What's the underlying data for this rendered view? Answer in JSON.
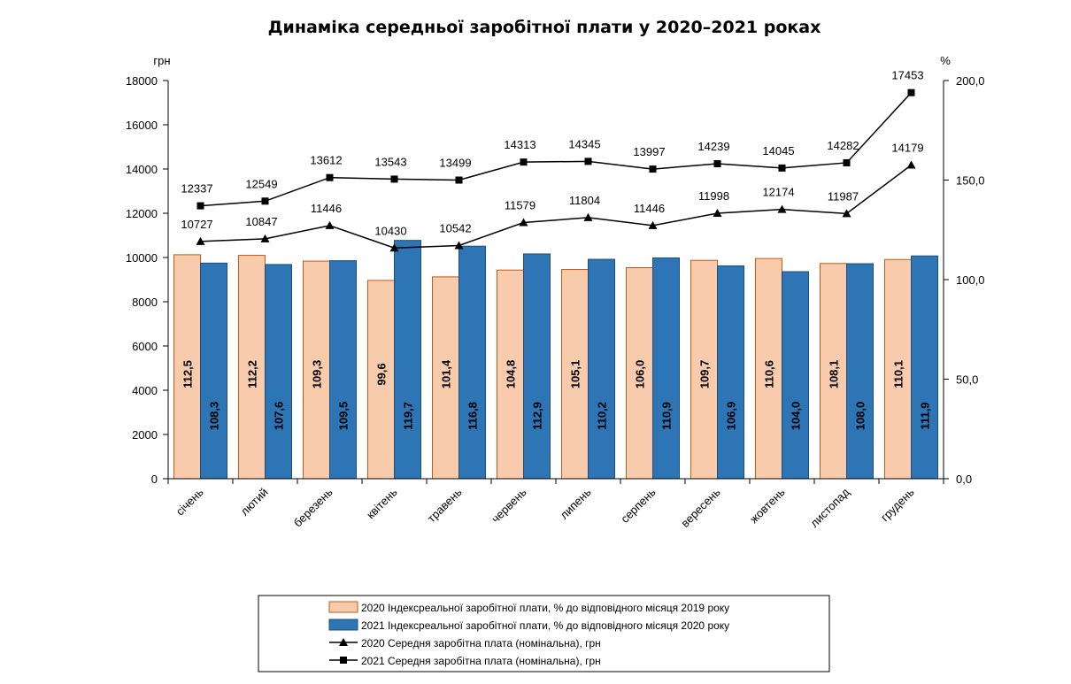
{
  "chart_data": {
    "type": "bar",
    "title": "Динаміка середньої заробітної плати у 2020–2021 роках",
    "left_unit": "грн",
    "right_unit": "%",
    "categories": [
      "січень",
      "лютий",
      "березень",
      "квітень",
      "травень",
      "червень",
      "липень",
      "серпень",
      "вересень",
      "жовтень",
      "листопад",
      "грудень"
    ],
    "left_axis": {
      "min": 0,
      "max": 18000,
      "step": 2000,
      "ticks": [
        "0",
        "2000",
        "4000",
        "6000",
        "8000",
        "10000",
        "12000",
        "14000",
        "16000",
        "18000"
      ]
    },
    "right_axis": {
      "min": 0,
      "max": 200,
      "step": 50,
      "ticks": [
        "0,0",
        "50,0",
        "100,0",
        "150,0",
        "200,0"
      ]
    },
    "bar_series": [
      {
        "name": "2020 Індексреальної заробітної плати, % до відповідного місяця 2019 року",
        "color": "#f8cbad",
        "stroke": "#c55a11",
        "values": [
          112.5,
          112.2,
          109.3,
          99.6,
          101.4,
          104.8,
          105.1,
          106.0,
          109.7,
          110.6,
          108.1,
          110.1
        ],
        "labels": [
          "112,5",
          "112,2",
          "109,3",
          "99,6",
          "101,4",
          "104,8",
          "105,1",
          "106,0",
          "109,7",
          "110,6",
          "108,1",
          "110,1"
        ]
      },
      {
        "name": "2021 Індексреальної заробітної плати, % до відповідного місяця 2020 року",
        "color": "#2e75b6",
        "stroke": "#1f4e79",
        "values": [
          108.3,
          107.6,
          109.5,
          119.7,
          116.8,
          112.9,
          110.2,
          110.9,
          106.9,
          104.0,
          108.0,
          111.9
        ],
        "labels": [
          "108,3",
          "107,6",
          "109,5",
          "119,7",
          "116,8",
          "112,9",
          "110,2",
          "110,9",
          "106,9",
          "104,0",
          "108,0",
          "111,9"
        ]
      }
    ],
    "line_series": [
      {
        "name": "2020 Середня заробітна плата (номінальна), грн",
        "marker": "triangle",
        "values": [
          10727,
          10847,
          11446,
          10430,
          10542,
          11579,
          11804,
          11446,
          11998,
          12174,
          11987,
          14179
        ],
        "labels": [
          "10727",
          "10847",
          "11446",
          "10430",
          "10542",
          "11579",
          "11804",
          "11446",
          "11998",
          "12174",
          "11987",
          "14179"
        ]
      },
      {
        "name": "2021 Середня заробітна плата (номінальна), грн",
        "marker": "square",
        "values": [
          12337,
          12549,
          13612,
          13543,
          13499,
          14313,
          14345,
          13997,
          14239,
          14045,
          14282,
          17453
        ],
        "labels": [
          "12337",
          "12549",
          "13612",
          "13543",
          "13499",
          "14313",
          "14345",
          "13997",
          "14239",
          "14045",
          "14282",
          "17453"
        ]
      }
    ],
    "legend_position": "bottom"
  }
}
